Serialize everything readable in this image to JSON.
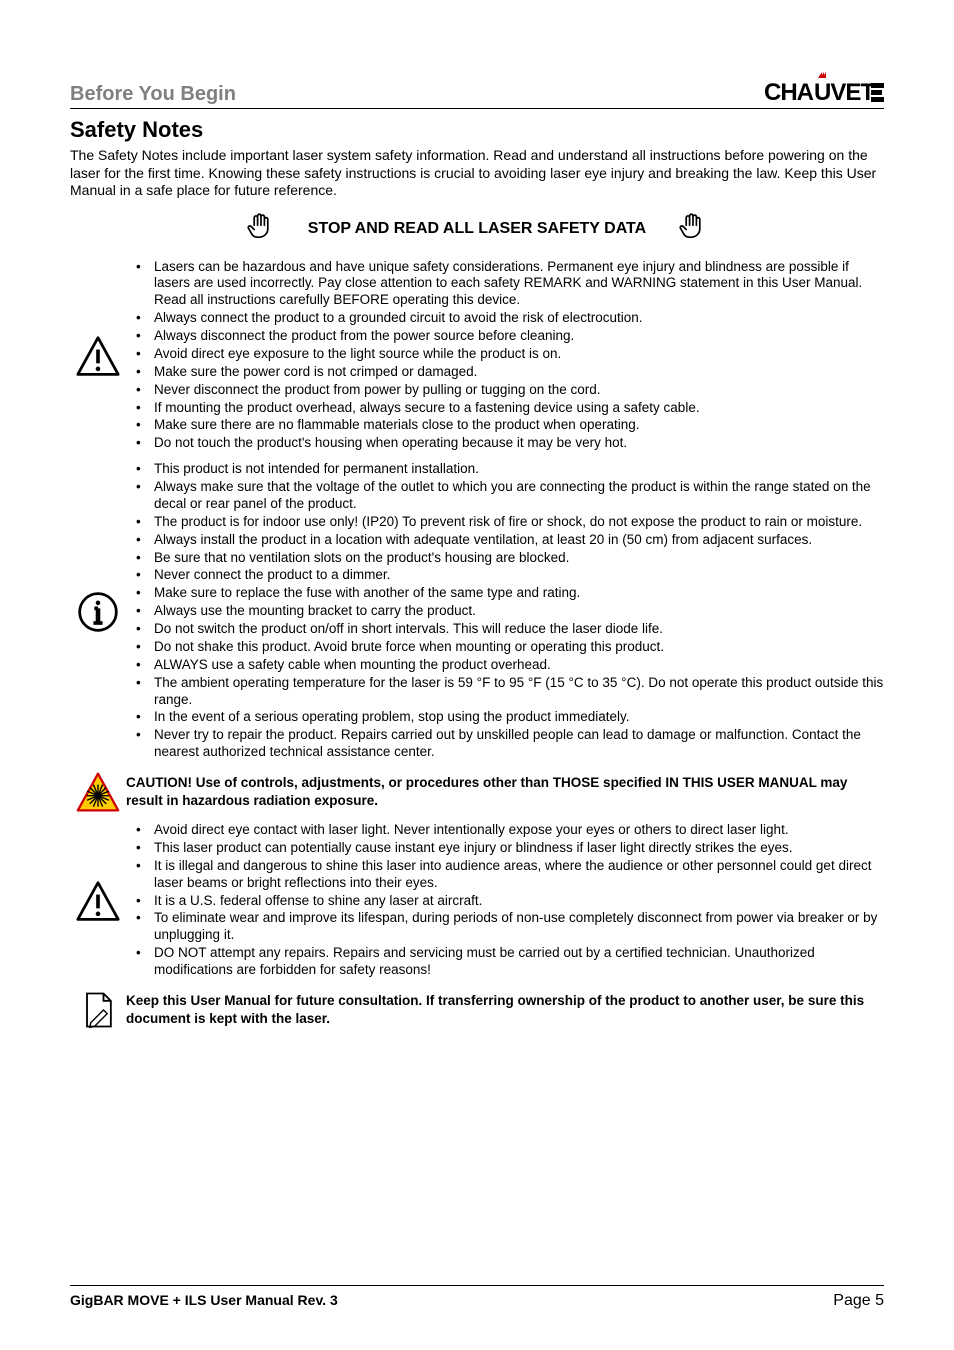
{
  "header": {
    "section": "Before You Begin",
    "brand": "CHAUVET"
  },
  "title": "Safety Notes",
  "intro": "The Safety Notes include important laser system safety information. Read and understand all instructions before powering on the laser for the first time. Knowing these safety instructions is crucial to avoiding laser eye injury and breaking the law. Keep this User Manual in a safe place for future reference.",
  "stopTitle": "STOP AND READ ALL LASER SAFETY DATA",
  "warningBlock1": [
    "Lasers can be hazardous and have unique safety considerations. Permanent eye injury and blindness are possible if lasers are used incorrectly. Pay close attention to each safety REMARK and WARNING statement in this User Manual. Read all instructions carefully BEFORE operating this device.",
    "Always connect the product to a grounded circuit to avoid the risk of electrocution.",
    "Always disconnect the product from the power source before cleaning.",
    "Avoid direct eye exposure to the light source while the product is on.",
    "Make sure the power cord is not crimped or damaged.",
    "Never disconnect the product from power by pulling or tugging on the cord.",
    "If mounting the product overhead, always secure to a fastening device using a safety cable.",
    "Make sure there are no flammable materials close to the product when operating.",
    "Do not touch the product's housing when operating because it may be very hot."
  ],
  "infoBlock": [
    "This product is not intended for permanent installation.",
    "Always make sure that the voltage of the outlet to which you are connecting the product is within the range stated on the decal or rear panel of the product.",
    "The product is for indoor use only! (IP20) To prevent risk of fire or shock, do not expose the product to rain or moisture.",
    "Always install the product in a location with adequate ventilation, at least 20 in (50 cm) from adjacent surfaces.",
    "Be sure that no ventilation slots on the product's housing are blocked.",
    "Never connect the product to a dimmer.",
    "Make sure to replace the fuse with another of the same type and rating.",
    "Always use the mounting bracket to carry the product.",
    "Do not switch the product on/off in short intervals. This will reduce the laser diode life.",
    "Do not shake this product. Avoid brute force when mounting or operating this product.",
    "ALWAYS use a safety cable when mounting the product overhead.",
    "The ambient operating temperature for the laser is 59 °F to 95 °F (15 °C to 35 °C). Do not operate this product outside this range.",
    "In the event of a serious operating problem, stop using the product immediately.",
    "Never try to repair the product. Repairs carried out by unskilled people can lead to damage or malfunction. Contact the nearest authorized technical assistance center."
  ],
  "cautionNote": "CAUTION! Use of controls, adjustments, or procedures other than THOSE specified IN THIS USER MANUAL may result in hazardous radiation exposure.",
  "warningBlock2": [
    "Avoid direct eye contact with laser light. Never intentionally expose your eyes or others to direct laser light.",
    "This laser product can potentially cause instant eye injury or blindness if laser light directly strikes the eyes.",
    "It is illegal and dangerous to shine this laser into audience areas, where the audience or other personnel could get direct laser beams or bright reflections into their eyes.",
    "It is a U.S. federal offense to shine any laser at aircraft.",
    "To eliminate wear and improve its lifespan, during periods of non-use completely disconnect from power via breaker or by unplugging it.",
    "DO NOT attempt any repairs. Repairs and servicing must be carried out by a certified technician. Unauthorized modifications are forbidden for safety reasons!"
  ],
  "keepNote": "Keep this User Manual for future consultation. If transferring ownership of the product to another user, be sure this document is kept with the laser.",
  "footer": {
    "left": "GigBAR MOVE + ILS User Manual Rev. 3",
    "right": "Page 5"
  },
  "colors": {
    "gray": "#808080",
    "red": "#cc0000",
    "yellow": "#ffcc00",
    "black": "#000000"
  }
}
